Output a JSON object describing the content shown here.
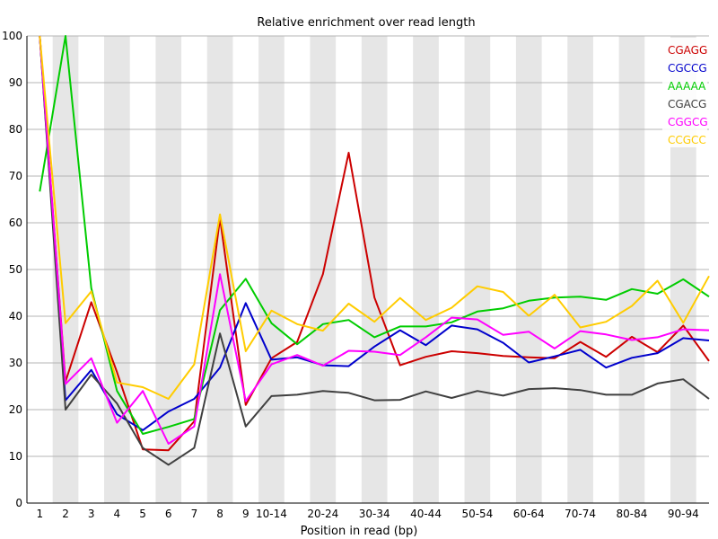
{
  "chart_data": {
    "type": "line",
    "title": "Relative enrichment over read length",
    "xlabel": "Position in read (bp)",
    "ylabel": "",
    "ylim": [
      0,
      100
    ],
    "y_ticks": [
      "0",
      "10",
      "20",
      "30",
      "40",
      "50",
      "60",
      "70",
      "80",
      "90",
      "100"
    ],
    "categories": [
      "1",
      "2",
      "3",
      "4",
      "5",
      "6",
      "7",
      "8",
      "9",
      "10-14",
      "15-19",
      "20-24",
      "25-29",
      "30-34",
      "35-39",
      "40-44",
      "45-49",
      "50-54",
      "55-59",
      "60-64",
      "65-69",
      "70-74",
      "75-79",
      "80-84",
      "85-89",
      "90-94",
      "95-99"
    ],
    "x_tick_labels": [
      "1",
      "2",
      "3",
      "4",
      "5",
      "6",
      "7",
      "8",
      "9",
      "10-14",
      "",
      "20-24",
      "",
      "30-34",
      "",
      "40-44",
      "",
      "50-54",
      "",
      "60-64",
      "",
      "70-74",
      "",
      "80-84",
      "",
      "90-94",
      ""
    ],
    "grid": "alternating vertical bands",
    "band_color": "#e6e6e6",
    "legend_position": "top-right",
    "series": [
      {
        "name": "CGAGG",
        "color": "#cc0000",
        "values": [
          100,
          26,
          43,
          28,
          11.5,
          11.3,
          17.5,
          61,
          21,
          31,
          34.5,
          49,
          75,
          44,
          29.5,
          31.3,
          32.5,
          32.1,
          31.5,
          31.2,
          31,
          34.5,
          31.3,
          35.6,
          32.3,
          38,
          30.4
        ]
      },
      {
        "name": "CGCCG",
        "color": "#0000cc",
        "values": [
          100,
          22,
          28.5,
          19,
          15.6,
          19.6,
          22.3,
          29,
          42.8,
          30.7,
          31.2,
          29.5,
          29.3,
          33.5,
          37,
          33.8,
          38,
          37.2,
          34.3,
          30.1,
          31.4,
          32.8,
          29,
          31.1,
          32.1,
          35.3,
          34.8
        ]
      },
      {
        "name": "AAAAA",
        "color": "#00cc00",
        "values": [
          66.7,
          100,
          46,
          24,
          14.8,
          16.3,
          18,
          41.3,
          48,
          38.5,
          34,
          38.3,
          39.2,
          35.5,
          37.8,
          37.8,
          38.7,
          41,
          41.7,
          43.3,
          44,
          44.2,
          43.5,
          45.8,
          44.8,
          47.9,
          44.2
        ]
      },
      {
        "name": "CGACG",
        "color": "#404040",
        "values": [
          100,
          20,
          27.5,
          21.3,
          11.8,
          8.2,
          11.8,
          36.3,
          16.4,
          22.9,
          23.2,
          24,
          23.6,
          22,
          22.1,
          23.9,
          22.5,
          24,
          23,
          24.4,
          24.6,
          24.2,
          23.2,
          23.2,
          25.6,
          26.5,
          22.3
        ]
      },
      {
        "name": "CGGCG",
        "color": "#ff00ff",
        "values": [
          100,
          25.5,
          31,
          17.2,
          24,
          12.7,
          16.4,
          49,
          21.8,
          29.7,
          31.7,
          29.4,
          32.6,
          32.4,
          31.7,
          35.5,
          39.7,
          39.3,
          36,
          36.7,
          33.1,
          36.8,
          36.1,
          34.9,
          35.5,
          37.2,
          37
        ]
      },
      {
        "name": "CCGCC",
        "color": "#ffcc00",
        "values": [
          100,
          38.5,
          45.3,
          25.8,
          24.8,
          22.3,
          29.7,
          61.8,
          32.5,
          41.2,
          38.3,
          36.9,
          42.7,
          38.8,
          43.9,
          39.2,
          41.8,
          46.4,
          45.2,
          40.1,
          44.6,
          37.6,
          38.8,
          42.2,
          47.6,
          38.6,
          48.6
        ]
      }
    ]
  }
}
